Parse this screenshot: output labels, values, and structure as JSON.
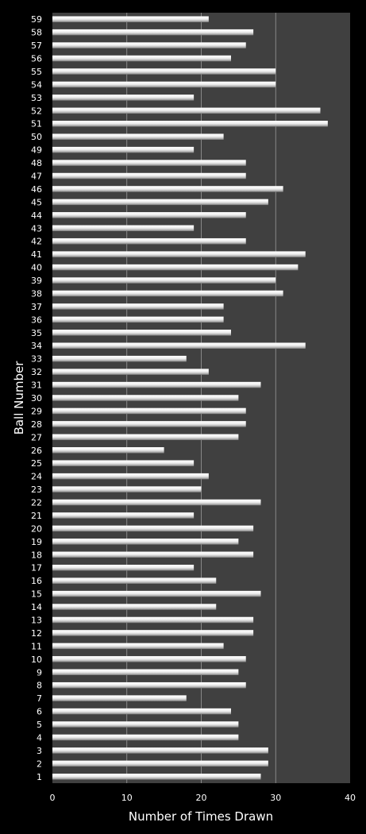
{
  "chart_data": {
    "type": "bar",
    "orientation": "horizontal",
    "xlabel": "Number of Times Drawn",
    "ylabel": "Ball Number",
    "xlim": [
      0,
      40
    ],
    "xticks": [
      0,
      10,
      20,
      30,
      40
    ],
    "grid": "vertical",
    "categories": [
      "1",
      "2",
      "3",
      "4",
      "5",
      "6",
      "7",
      "8",
      "9",
      "10",
      "11",
      "12",
      "13",
      "14",
      "15",
      "16",
      "17",
      "18",
      "19",
      "20",
      "21",
      "22",
      "23",
      "24",
      "25",
      "26",
      "27",
      "28",
      "29",
      "30",
      "31",
      "32",
      "33",
      "34",
      "35",
      "36",
      "37",
      "38",
      "39",
      "40",
      "41",
      "42",
      "43",
      "44",
      "45",
      "46",
      "47",
      "48",
      "49",
      "50",
      "51",
      "52",
      "53",
      "54",
      "55",
      "56",
      "57",
      "58",
      "59"
    ],
    "values": [
      28,
      29,
      29,
      25,
      25,
      24,
      18,
      26,
      25,
      26,
      23,
      27,
      27,
      22,
      28,
      22,
      19,
      27,
      25,
      27,
      19,
      28,
      20,
      21,
      19,
      15,
      25,
      26,
      26,
      25,
      28,
      21,
      18,
      34,
      24,
      23,
      23,
      31,
      30,
      33,
      34,
      26,
      19,
      26,
      29,
      31,
      26,
      26,
      19,
      23,
      37,
      36,
      19,
      30,
      30,
      24,
      26,
      27,
      21
    ],
    "colors": {
      "plot_background": "#404040",
      "page_background": "#000000",
      "bar": "#e6e6e6",
      "gridline": "#9a9a9a",
      "text": "#ffffff"
    }
  }
}
